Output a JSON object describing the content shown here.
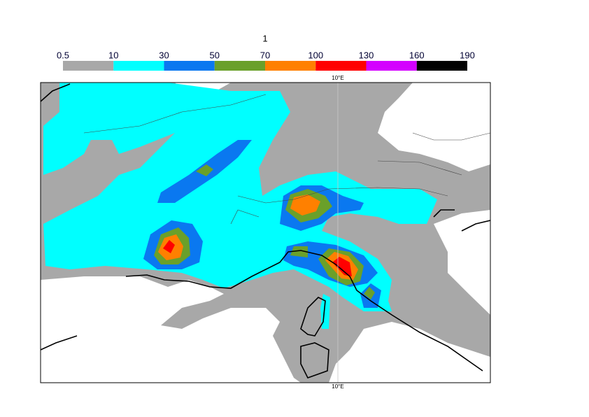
{
  "title": "1",
  "colorbar": {
    "labels": [
      "0.5",
      "10",
      "30",
      "50",
      "70",
      "100",
      "130",
      "160",
      "190"
    ],
    "colors": [
      "#a8a8a8",
      "#00ffff",
      "#0a78f0",
      "#6aa02a",
      "#ff8000",
      "#ff0000",
      "#d400ff",
      "#000000"
    ]
  },
  "map": {
    "top_label": "10°E",
    "bottom_label": "10°E"
  }
}
